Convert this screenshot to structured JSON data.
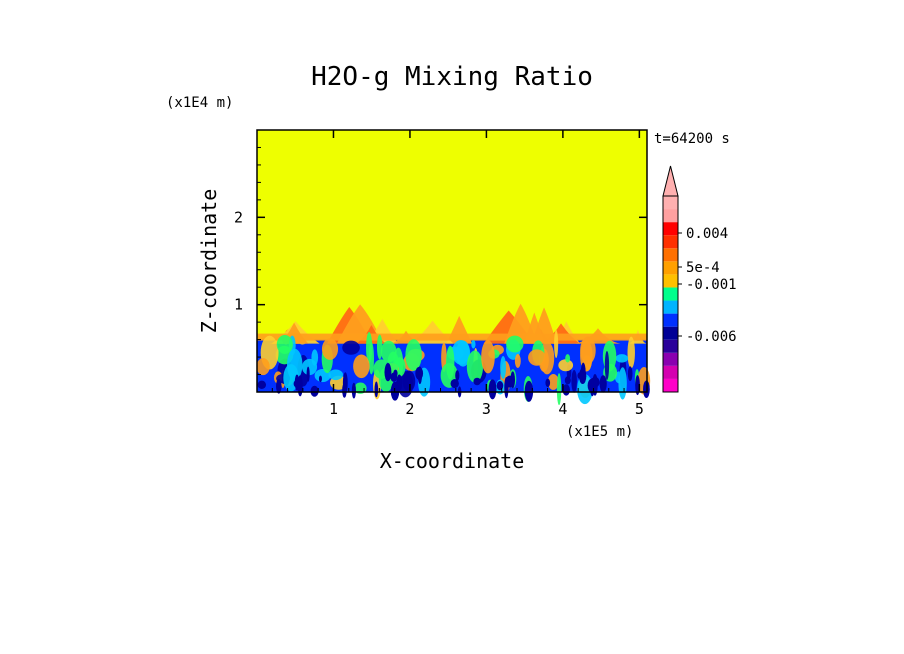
{
  "chart_data": {
    "type": "heatmap",
    "title": "H2O-g Mixing Ratio",
    "xlabel": "X-coordinate",
    "ylabel": "Z-coordinate",
    "x_scale_label": "(x1E5 m)",
    "y_scale_label": "(x1E4 m)",
    "time_label": "t=64200 s",
    "xlim": [
      0,
      5.1
    ],
    "ylim": [
      0,
      3.0
    ],
    "x_ticks": [
      "1",
      "2",
      "3",
      "4",
      "5"
    ],
    "y_ticks": [
      "1",
      "2"
    ],
    "field_description_values": {
      "upper_layer_value_range": "0 to 5e-4",
      "boundary_layer_top_z": 0.6,
      "mixed_plume_top_z": 1.05
    },
    "colorbar": {
      "labels": [
        "0.004",
        "5e-4",
        "-0.001",
        "-0.006"
      ],
      "colors": [
        "#ff00c8",
        "#d400b0",
        "#8a00b0",
        "#2a009a",
        "#000096",
        "#0030ff",
        "#00b4ff",
        "#00ff8c",
        "#ffc000",
        "#ffa000",
        "#ff7000",
        "#ff3000",
        "#ff0000",
        "#ffa0a0",
        "#ffb0b0"
      ],
      "background_color": "#eeff00"
    },
    "colors": {
      "background": "#eeff00",
      "orange": "#ff9e1c",
      "light_orange": "#ffcf2e",
      "red_orange": "#ff6a14",
      "green": "#24ff64",
      "cyan": "#00c8ff",
      "blue": "#0030ff",
      "dark_blue": "#0000a0"
    }
  }
}
